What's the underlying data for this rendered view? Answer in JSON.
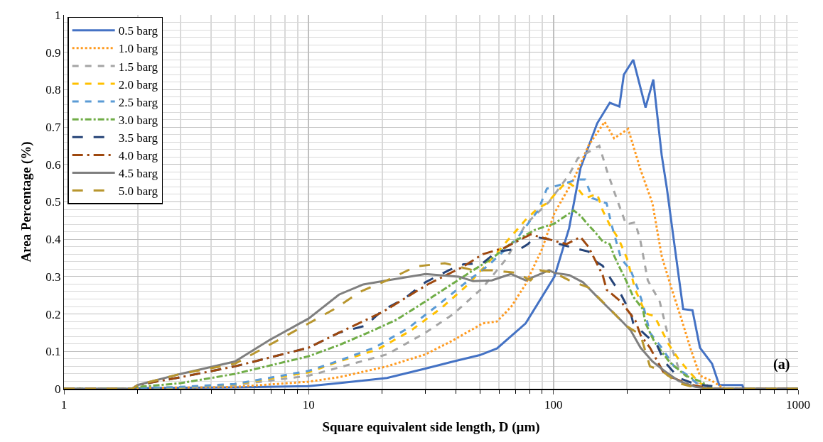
{
  "chart_data": {
    "type": "line",
    "xlabel": "Square equivalent side length, D (µm)",
    "ylabel": "Area Percentage (%)",
    "log": "x",
    "xlim": [
      1,
      1000
    ],
    "xticks": [
      1,
      10,
      100,
      1000
    ],
    "ylim": [
      0,
      1
    ],
    "yticks": [
      0,
      0.1,
      0.2,
      0.3,
      0.4,
      0.5,
      0.6,
      0.7,
      0.8,
      0.9,
      1
    ],
    "grid": true,
    "legend": "top left",
    "marker": "none",
    "annotations": [
      "(a)"
    ],
    "series": [
      {
        "name": "0.5 barg",
        "color": "#4472c4",
        "line_style": "solid",
        "x": [
          1,
          1.9,
          2,
          5,
          10,
          13.3,
          20.9,
          30,
          39,
          50,
          58.8,
          77,
          101,
          116,
          129,
          151,
          170,
          186,
          194,
          212,
          238,
          256,
          277,
          291,
          311,
          339,
          370,
          397,
          445,
          476,
          591,
          600,
          1000
        ],
        "values": [
          0,
          0,
          0.002,
          0.004,
          0.007,
          0.015,
          0.029,
          0.054,
          0.073,
          0.09,
          0.108,
          0.175,
          0.3,
          0.43,
          0.59,
          0.71,
          0.765,
          0.755,
          0.84,
          0.88,
          0.752,
          0.827,
          0.625,
          0.535,
          0.394,
          0.213,
          0.21,
          0.11,
          0.067,
          0.01,
          0.01,
          0,
          0
        ]
      },
      {
        "name": "1.0 barg",
        "color": "#ff9a1f",
        "line_style": "dotted",
        "x": [
          1,
          1.9,
          2,
          5,
          10,
          13.3,
          20.9,
          30,
          39,
          51.4,
          58.8,
          67.3,
          77,
          90,
          101,
          121,
          139,
          162,
          177,
          202,
          227,
          254,
          277,
          303,
          333,
          364,
          397,
          445,
          500,
          1000
        ],
        "values": [
          0,
          0,
          0.002,
          0.005,
          0.019,
          0.031,
          0.06,
          0.092,
          0.13,
          0.175,
          0.18,
          0.22,
          0.28,
          0.375,
          0.47,
          0.56,
          0.65,
          0.714,
          0.67,
          0.695,
          0.586,
          0.496,
          0.355,
          0.271,
          0.188,
          0.106,
          0.035,
          0.021,
          0,
          0
        ]
      },
      {
        "name": "1.5 barg",
        "color": "#a5a5a5",
        "line_style": "dashed",
        "x": [
          1,
          1.9,
          2,
          3,
          5,
          10,
          13.3,
          20.9,
          30,
          39,
          51.4,
          64.3,
          77,
          96,
          116,
          126,
          154,
          165,
          177,
          198,
          216,
          227,
          243,
          272,
          297,
          325,
          356,
          400,
          450,
          1000
        ],
        "values": [
          0,
          0,
          0.002,
          0.003,
          0.01,
          0.035,
          0.057,
          0.092,
          0.15,
          0.2,
          0.27,
          0.348,
          0.44,
          0.5,
          0.573,
          0.617,
          0.65,
          0.586,
          0.528,
          0.44,
          0.445,
          0.394,
          0.29,
          0.233,
          0.131,
          0.054,
          0.029,
          0.01,
          0,
          0
        ]
      },
      {
        "name": "2.0 barg",
        "color": "#ffc000",
        "line_style": "dashed",
        "x": [
          1,
          1.9,
          2,
          3,
          5,
          10,
          13.3,
          19.1,
          26.2,
          35,
          45,
          56,
          77,
          86.5,
          94,
          113,
          126,
          135,
          151,
          159,
          170,
          185,
          200,
          216,
          238,
          259,
          277,
          297,
          325,
          356,
          397,
          450,
          1000
        ],
        "values": [
          0,
          0,
          0.002,
          0.004,
          0.012,
          0.044,
          0.073,
          0.105,
          0.156,
          0.217,
          0.28,
          0.348,
          0.452,
          0.483,
          0.496,
          0.554,
          0.535,
          0.51,
          0.521,
          0.477,
          0.438,
          0.4,
          0.348,
          0.265,
          0.202,
          0.194,
          0.156,
          0.117,
          0.079,
          0.048,
          0.015,
          0,
          0
        ]
      },
      {
        "name": "2.5 barg",
        "color": "#5b9bd5",
        "line_style": "dashed",
        "x": [
          1,
          1.9,
          2,
          3,
          5,
          10,
          13.3,
          18.7,
          25.6,
          33.6,
          44,
          54,
          70.6,
          86.5,
          94,
          126,
          135,
          144,
          165,
          173,
          189,
          207,
          222,
          232,
          248,
          277,
          311,
          356,
          400,
          450,
          1000
        ],
        "values": [
          0,
          0,
          0.002,
          0.005,
          0.013,
          0.048,
          0.075,
          0.111,
          0.163,
          0.223,
          0.285,
          0.329,
          0.4,
          0.477,
          0.535,
          0.56,
          0.56,
          0.51,
          0.496,
          0.438,
          0.348,
          0.317,
          0.265,
          0.227,
          0.15,
          0.11,
          0.06,
          0.035,
          0.005,
          0,
          0
        ]
      },
      {
        "name": "3.0 barg",
        "color": "#70ad47",
        "line_style": "dashdot",
        "x": [
          1,
          1.9,
          2,
          3,
          5,
          10,
          13.3,
          17.5,
          22.9,
          29.4,
          36.7,
          47,
          56,
          67.3,
          84,
          101,
          121,
          129,
          139,
          148,
          159,
          170,
          177,
          185,
          198,
          212,
          232,
          238,
          259,
          297,
          347,
          397,
          450,
          1000
        ],
        "values": [
          0,
          0,
          0.005,
          0.015,
          0.04,
          0.087,
          0.117,
          0.15,
          0.185,
          0.23,
          0.271,
          0.317,
          0.348,
          0.39,
          0.425,
          0.442,
          0.477,
          0.463,
          0.438,
          0.419,
          0.394,
          0.387,
          0.356,
          0.329,
          0.29,
          0.246,
          0.213,
          0.175,
          0.125,
          0.073,
          0.035,
          0.02,
          0,
          0
        ]
      },
      {
        "name": "3.5 barg",
        "color": "#264478",
        "line_style": "longdash",
        "x": [
          1,
          1.9,
          2,
          3,
          5,
          10,
          13.3,
          17.1,
          20,
          24.5,
          30,
          37.4,
          42.9,
          51.4,
          58.8,
          73.5,
          78.7,
          84,
          96,
          106,
          124,
          139,
          148,
          159,
          173,
          189,
          207,
          212,
          238,
          265,
          284,
          325,
          381,
          476,
          500,
          1000
        ],
        "values": [
          0,
          0,
          0.01,
          0.031,
          0.06,
          0.11,
          0.15,
          0.169,
          0.21,
          0.24,
          0.285,
          0.317,
          0.333,
          0.336,
          0.367,
          0.375,
          0.387,
          0.406,
          0.4,
          0.387,
          0.375,
          0.367,
          0.342,
          0.329,
          0.29,
          0.252,
          0.202,
          0.175,
          0.144,
          0.117,
          0.073,
          0.029,
          0.012,
          0.005,
          0,
          0
        ]
      },
      {
        "name": "4.0 barg",
        "color": "#9e480e",
        "line_style": "longdashdot",
        "x": [
          1,
          1.9,
          2,
          3,
          5,
          10,
          13.3,
          20,
          30.6,
          42.9,
          51.4,
          63,
          80.7,
          113,
          129,
          139,
          159,
          165,
          189,
          216,
          227,
          248,
          284,
          356,
          450,
          1000
        ],
        "values": [
          0,
          0,
          0.01,
          0.031,
          0.06,
          0.11,
          0.15,
          0.205,
          0.279,
          0.327,
          0.36,
          0.377,
          0.413,
          0.387,
          0.406,
          0.38,
          0.304,
          0.265,
          0.233,
          0.183,
          0.144,
          0.11,
          0.04,
          0.012,
          0,
          0
        ]
      },
      {
        "name": "4.5 barg",
        "color": "#7f7f7f",
        "line_style": "solid",
        "x": [
          1,
          1.9,
          2,
          3,
          5,
          6.9,
          10,
          13.3,
          16.7,
          20.9,
          30,
          41,
          47,
          56,
          67,
          77,
          96,
          101,
          116,
          132,
          151,
          165,
          189,
          207,
          227,
          254,
          284,
          325,
          381,
          450,
          1000
        ],
        "values": [
          0,
          0,
          0.01,
          0.04,
          0.073,
          0.13,
          0.188,
          0.252,
          0.279,
          0.29,
          0.307,
          0.3,
          0.288,
          0.29,
          0.307,
          0.29,
          0.317,
          0.31,
          0.304,
          0.285,
          0.246,
          0.221,
          0.183,
          0.156,
          0.11,
          0.073,
          0.048,
          0.021,
          0.005,
          0,
          0
        ]
      },
      {
        "name": "5.0 barg",
        "color": "#b8962e",
        "line_style": "longdash",
        "x": [
          1,
          1.9,
          2,
          3,
          5,
          10,
          12.7,
          16.3,
          20.9,
          27.4,
          36,
          47,
          56,
          70.6,
          80.7,
          88,
          101,
          116,
          139,
          159,
          177,
          198,
          227,
          248,
          277,
          325,
          400,
          1000
        ],
        "values": [
          0,
          0,
          0.01,
          0.04,
          0.067,
          0.175,
          0.213,
          0.26,
          0.29,
          0.327,
          0.336,
          0.317,
          0.317,
          0.31,
          0.29,
          0.317,
          0.31,
          0.29,
          0.271,
          0.233,
          0.202,
          0.169,
          0.144,
          0.06,
          0.048,
          0.015,
          0,
          0
        ]
      }
    ]
  }
}
